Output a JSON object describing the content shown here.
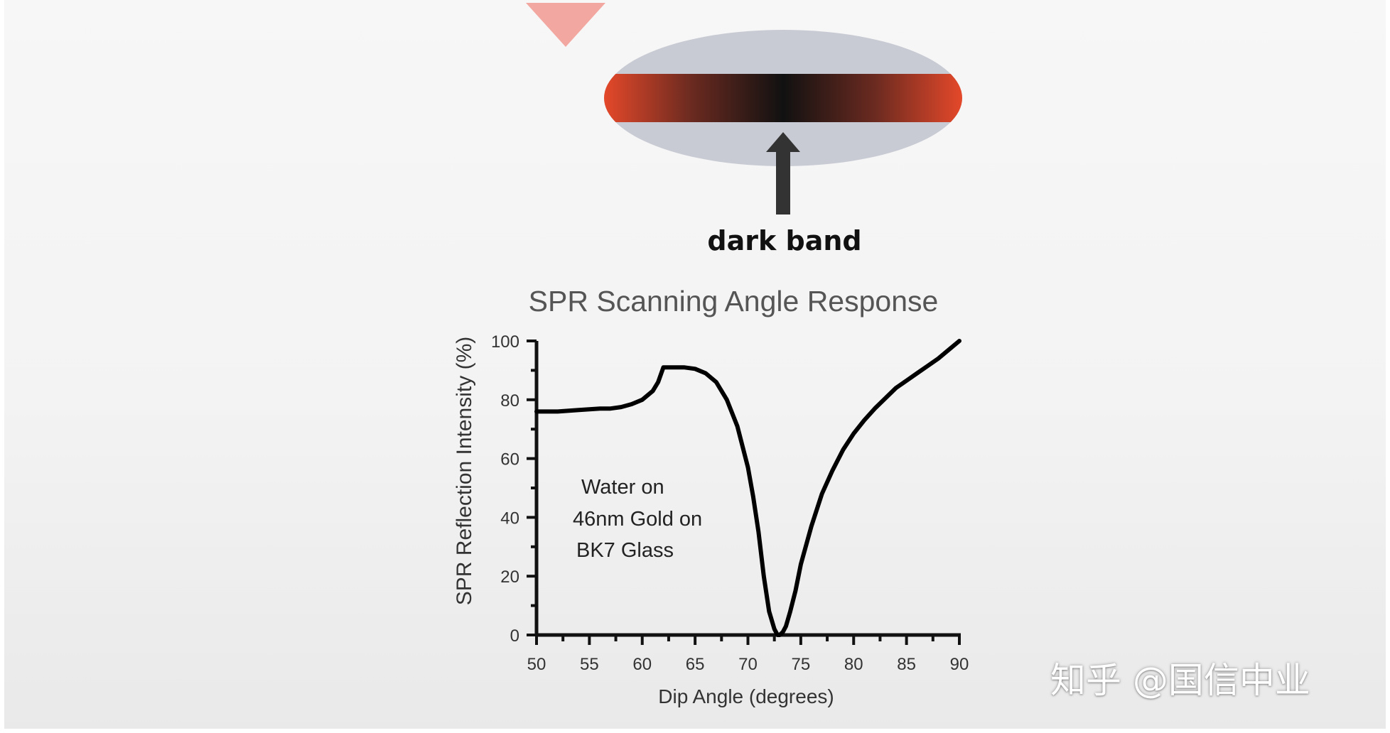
{
  "illustration": {
    "band_label": "dark band",
    "colors": {
      "band_edge": "#e8492a",
      "band_center": "#111111",
      "ellipse": "#c9cbd4",
      "prism": "#f2a7a0",
      "arrow": "#333333"
    }
  },
  "chart_data": {
    "type": "line",
    "title": "SPR Scanning Angle Response",
    "xlabel": "Dip Angle (degrees)",
    "ylabel": "SPR Reflection Intensity (%)",
    "xlim": [
      50,
      90
    ],
    "ylim": [
      0,
      100
    ],
    "xticks": [
      "50",
      "55",
      "60",
      "65",
      "70",
      "75",
      "80",
      "85",
      "90"
    ],
    "yticks": [
      "0",
      "20",
      "40",
      "60",
      "80",
      "100"
    ],
    "annotation": [
      "Water on",
      "46nm Gold on",
      "BK7 Glass"
    ],
    "grid": false,
    "line_color": "#000000",
    "series": [
      {
        "x": [
          50,
          52,
          54,
          56,
          57,
          58,
          59,
          60,
          61,
          61.5,
          62,
          63,
          64,
          65,
          66,
          67,
          68,
          69,
          70,
          70.5,
          71,
          71.5,
          72,
          72.5,
          72.8,
          73,
          73.3,
          73.6,
          74,
          74.5,
          75,
          76,
          77,
          78,
          79,
          80,
          81,
          82,
          83,
          84,
          85,
          86,
          87,
          88,
          89,
          90
        ],
        "y": [
          76,
          76,
          76.5,
          77,
          77,
          77.5,
          78.5,
          80,
          83,
          86,
          91,
          91,
          91,
          90.5,
          89,
          86,
          80,
          71,
          57,
          47,
          35,
          20,
          8,
          2,
          0,
          0,
          1,
          3,
          8,
          15,
          24,
          37,
          48,
          56,
          63,
          68.5,
          73,
          77,
          80.5,
          84,
          86.5,
          89,
          91.5,
          94,
          97,
          100
        ]
      }
    ]
  },
  "watermark": {
    "text": "知乎 @国信中业"
  }
}
